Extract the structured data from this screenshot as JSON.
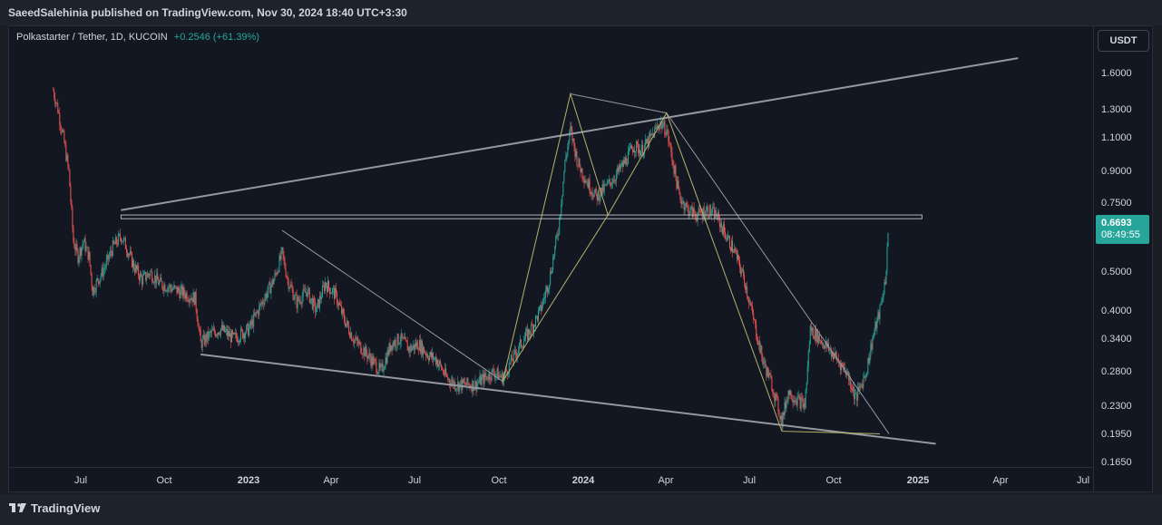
{
  "header": {
    "published_text": "SaeedSalehinia published on TradingView.com, Nov 30, 2024 18:40 UTC+3:30"
  },
  "legend": {
    "symbol_text": "Polkastarter / Tether, 1D, KUCOIN",
    "change_text": "+0.2546 (+61.39%)"
  },
  "toolbar": {
    "currency_label": "USDT"
  },
  "price_tag": {
    "price": "0.6693",
    "countdown": "08:49:55"
  },
  "footer": {
    "brand": "TradingView"
  },
  "colors": {
    "background": "#131722",
    "bull": "#26a69a",
    "bear": "#ef5350",
    "trendline": "#9598a1",
    "pattern": "#b5b36a"
  },
  "chart_data": {
    "type": "candlestick",
    "scale": "log",
    "x_ticks": [
      "Jul",
      "Oct",
      "2023",
      "Apr",
      "Jul",
      "Oct",
      "2024",
      "Apr",
      "Jul",
      "Oct",
      "2025",
      "Apr",
      "Jul"
    ],
    "x_ticks_bold": [
      "2023",
      "2024",
      "2025"
    ],
    "y_ticks": [
      "1.6000",
      "1.3000",
      "1.1000",
      "0.9000",
      "0.7500",
      "0.6000",
      "0.5000",
      "0.4000",
      "0.3400",
      "0.2800",
      "0.2300",
      "0.1950",
      "0.1650"
    ],
    "y_range": [
      0.165,
      1.8
    ],
    "last_price": 0.6693,
    "series": [
      {
        "name": "",
        "close_path": [
          [
            "2022-06-01",
            1.45
          ],
          [
            "2022-06-06",
            1.3
          ],
          [
            "2022-06-12",
            1.1
          ],
          [
            "2022-06-18",
            0.9
          ],
          [
            "2022-06-23",
            0.6
          ],
          [
            "2022-06-28",
            0.55
          ],
          [
            "2022-07-04",
            0.6
          ],
          [
            "2022-07-10",
            0.55
          ],
          [
            "2022-07-14",
            0.45
          ],
          [
            "2022-07-20",
            0.48
          ],
          [
            "2022-07-28",
            0.52
          ],
          [
            "2022-08-05",
            0.58
          ],
          [
            "2022-08-14",
            0.62
          ],
          [
            "2022-08-20",
            0.58
          ],
          [
            "2022-08-28",
            0.52
          ],
          [
            "2022-09-06",
            0.48
          ],
          [
            "2022-09-15",
            0.5
          ],
          [
            "2022-09-25",
            0.47
          ],
          [
            "2022-10-05",
            0.46
          ],
          [
            "2022-10-15",
            0.45
          ],
          [
            "2022-10-25",
            0.44
          ],
          [
            "2022-11-03",
            0.43
          ],
          [
            "2022-11-09",
            0.33
          ],
          [
            "2022-11-20",
            0.35
          ],
          [
            "2022-12-01",
            0.36
          ],
          [
            "2022-12-15",
            0.34
          ],
          [
            "2023-01-01",
            0.36
          ],
          [
            "2023-01-15",
            0.42
          ],
          [
            "2023-01-28",
            0.48
          ],
          [
            "2023-02-06",
            0.56
          ],
          [
            "2023-02-12",
            0.48
          ],
          [
            "2023-02-22",
            0.42
          ],
          [
            "2023-03-05",
            0.45
          ],
          [
            "2023-03-15",
            0.4
          ],
          [
            "2023-03-25",
            0.47
          ],
          [
            "2023-04-05",
            0.44
          ],
          [
            "2023-04-15",
            0.38
          ],
          [
            "2023-04-25",
            0.34
          ],
          [
            "2023-05-05",
            0.32
          ],
          [
            "2023-05-15",
            0.3
          ],
          [
            "2023-05-25",
            0.28
          ],
          [
            "2023-06-05",
            0.33
          ],
          [
            "2023-06-15",
            0.34
          ],
          [
            "2023-06-25",
            0.32
          ],
          [
            "2023-07-05",
            0.33
          ],
          [
            "2023-07-15",
            0.31
          ],
          [
            "2023-07-25",
            0.3
          ],
          [
            "2023-08-05",
            0.27
          ],
          [
            "2023-08-15",
            0.26
          ],
          [
            "2023-08-25",
            0.26
          ],
          [
            "2023-09-05",
            0.26
          ],
          [
            "2023-09-15",
            0.27
          ],
          [
            "2023-09-25",
            0.28
          ],
          [
            "2023-10-05",
            0.27
          ],
          [
            "2023-10-15",
            0.3
          ],
          [
            "2023-10-25",
            0.33
          ],
          [
            "2023-11-05",
            0.36
          ],
          [
            "2023-11-15",
            0.4
          ],
          [
            "2023-11-25",
            0.48
          ],
          [
            "2023-12-05",
            0.65
          ],
          [
            "2023-12-12",
            0.95
          ],
          [
            "2023-12-18",
            1.15
          ],
          [
            "2023-12-26",
            0.95
          ],
          [
            "2024-01-05",
            0.85
          ],
          [
            "2024-01-15",
            0.78
          ],
          [
            "2024-01-25",
            0.82
          ],
          [
            "2024-02-05",
            0.88
          ],
          [
            "2024-02-15",
            0.95
          ],
          [
            "2024-02-25",
            1.05
          ],
          [
            "2024-03-05",
            1.02
          ],
          [
            "2024-03-15",
            1.1
          ],
          [
            "2024-03-25",
            1.2
          ],
          [
            "2024-04-01",
            1.15
          ],
          [
            "2024-04-08",
            0.95
          ],
          [
            "2024-04-15",
            0.78
          ],
          [
            "2024-04-25",
            0.72
          ],
          [
            "2024-05-05",
            0.7
          ],
          [
            "2024-05-15",
            0.72
          ],
          [
            "2024-05-25",
            0.7
          ],
          [
            "2024-06-05",
            0.62
          ],
          [
            "2024-06-15",
            0.56
          ],
          [
            "2024-06-25",
            0.48
          ],
          [
            "2024-07-05",
            0.38
          ],
          [
            "2024-07-15",
            0.3
          ],
          [
            "2024-07-25",
            0.26
          ],
          [
            "2024-08-05",
            0.21
          ],
          [
            "2024-08-12",
            0.25
          ],
          [
            "2024-08-20",
            0.24
          ],
          [
            "2024-08-30",
            0.23
          ],
          [
            "2024-09-05",
            0.36
          ],
          [
            "2024-09-15",
            0.34
          ],
          [
            "2024-09-25",
            0.32
          ],
          [
            "2024-10-05",
            0.3
          ],
          [
            "2024-10-15",
            0.28
          ],
          [
            "2024-10-25",
            0.24
          ],
          [
            "2024-11-05",
            0.28
          ],
          [
            "2024-11-12",
            0.34
          ],
          [
            "2024-11-20",
            0.4
          ],
          [
            "2024-11-26",
            0.48
          ],
          [
            "2024-11-30",
            0.6693
          ]
        ]
      }
    ],
    "drawings": {
      "upper_trendline": [
        [
          "2022-08-14",
          0.72
        ],
        [
          "2025-04-20",
          1.75
        ]
      ],
      "lower_trendline": [
        [
          "2022-11-09",
          0.31
        ],
        [
          "2025-01-20",
          0.184
        ]
      ],
      "horizontal_zone": [
        [
          "2022-08-14",
          0.7
        ],
        [
          "2025-01-05",
          0.685
        ]
      ],
      "descending_line_1": [
        [
          "2023-02-06",
          0.64
        ],
        [
          "2023-10-05",
          0.265
        ]
      ],
      "descending_line_2": [
        [
          "2024-04-01",
          1.27
        ],
        [
          "2024-11-30",
          0.195
        ]
      ],
      "zigzag_pattern": [
        [
          "2023-10-05",
          0.265
        ],
        [
          "2023-12-18",
          1.42
        ],
        [
          "2024-01-28",
          0.7
        ],
        [
          "2024-04-01",
          1.27
        ],
        [
          "2024-08-05",
          0.198
        ],
        [
          "2024-11-20",
          0.195
        ]
      ]
    }
  }
}
